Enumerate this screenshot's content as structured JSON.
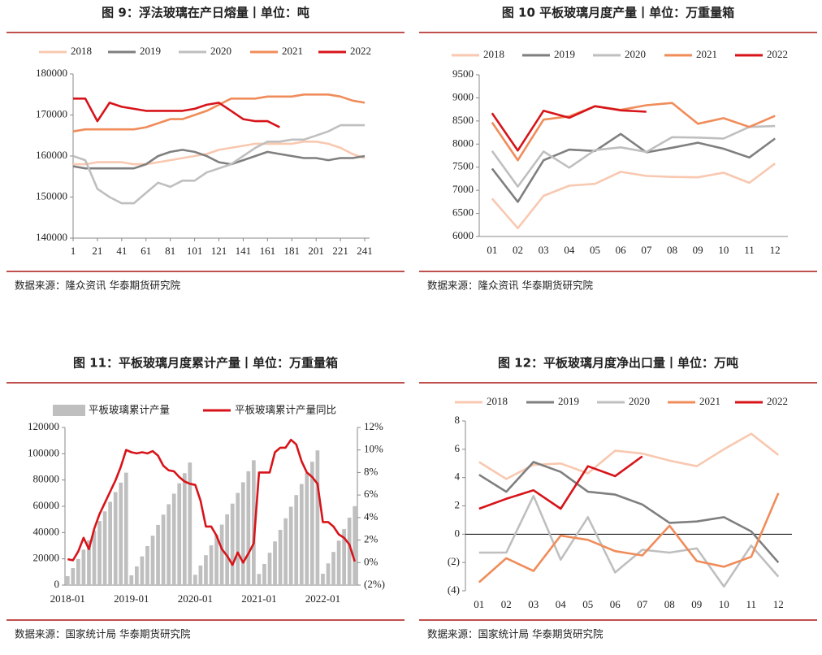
{
  "chart_data": [
    {
      "type": "line",
      "title": "图 9：浮法玻璃在产日熔量丨单位：吨",
      "source": "数据来源：隆众资讯  华泰期货研究院",
      "x": [
        1,
        11,
        21,
        31,
        41,
        51,
        61,
        71,
        81,
        91,
        101,
        111,
        121,
        131,
        141,
        151,
        161,
        171,
        181,
        191,
        201,
        211,
        221,
        231,
        241
      ],
      "xlim": [
        1,
        245
      ],
      "xticks": [
        1,
        21,
        41,
        61,
        81,
        101,
        121,
        141,
        161,
        181,
        201,
        221,
        241
      ],
      "ylim": [
        140000,
        180000
      ],
      "yticks": [
        140000,
        150000,
        160000,
        170000,
        180000
      ],
      "series": [
        {
          "name": "2018",
          "color": "#f8c8b0",
          "values": [
            158000,
            158000,
            158500,
            158500,
            158500,
            158000,
            158000,
            158500,
            159000,
            159500,
            160000,
            160500,
            161500,
            162000,
            162500,
            163000,
            163000,
            163000,
            163000,
            163500,
            163500,
            163000,
            162000,
            160500,
            159500
          ]
        },
        {
          "name": "2019",
          "color": "#7f7f7f",
          "values": [
            157500,
            157000,
            157000,
            157000,
            157000,
            157000,
            158000,
            160000,
            161000,
            161500,
            161000,
            160000,
            158500,
            158000,
            159000,
            160000,
            161000,
            160500,
            160000,
            159500,
            159500,
            159000,
            159500,
            159500,
            160000
          ]
        },
        {
          "name": "2020",
          "color": "#bfbfbf",
          "values": [
            160000,
            159000,
            152000,
            150000,
            148500,
            148500,
            151000,
            153500,
            152500,
            154000,
            154000,
            156000,
            157000,
            158000,
            160000,
            162000,
            163500,
            163500,
            164000,
            164000,
            165000,
            166000,
            167500,
            167500,
            167500
          ]
        },
        {
          "name": "2021",
          "color": "#f08c5a",
          "values": [
            166000,
            166500,
            166500,
            166500,
            166500,
            166500,
            167000,
            168000,
            169000,
            169000,
            170000,
            171000,
            172500,
            174000,
            174000,
            174000,
            174500,
            174500,
            174500,
            175000,
            175000,
            175000,
            174500,
            173500,
            173000
          ]
        },
        {
          "name": "2022",
          "color": "#d7141a",
          "values": [
            174000,
            174000,
            168500,
            173000,
            172000,
            171500,
            171000,
            171000,
            171000,
            171000,
            171500,
            172500,
            173000,
            171000,
            169000,
            168500,
            168500,
            167000,
            null,
            null,
            null,
            null,
            null,
            null,
            null
          ]
        }
      ]
    },
    {
      "type": "line",
      "title": "图 10 平板玻璃月度产量丨单位：万重量箱",
      "source": "数据来源：隆众资讯  华泰期货研究院",
      "categories": [
        "01",
        "02",
        "03",
        "04",
        "05",
        "06",
        "07",
        "08",
        "09",
        "10",
        "11",
        "12"
      ],
      "ylim": [
        6000,
        9500
      ],
      "yticks": [
        6000,
        6500,
        7000,
        7500,
        8000,
        8500,
        9000,
        9500
      ],
      "series": [
        {
          "name": "2018",
          "color": "#f8c8b0",
          "values": [
            6820,
            6180,
            6880,
            7100,
            7140,
            7400,
            7310,
            7290,
            7280,
            7380,
            7160,
            7580
          ]
        },
        {
          "name": "2019",
          "color": "#7f7f7f",
          "values": [
            7470,
            6750,
            7650,
            7880,
            7850,
            8220,
            7820,
            7920,
            8030,
            7900,
            7710,
            8120
          ]
        },
        {
          "name": "2020",
          "color": "#bfbfbf",
          "values": [
            7850,
            7080,
            7840,
            7490,
            7870,
            7930,
            7830,
            8150,
            8140,
            8120,
            8370,
            8390
          ]
        },
        {
          "name": "2021",
          "color": "#f08c5a",
          "values": [
            8470,
            7650,
            8530,
            8600,
            8820,
            8740,
            8840,
            8890,
            8440,
            8560,
            8370,
            8610
          ]
        },
        {
          "name": "2022",
          "color": "#d7141a",
          "values": [
            8670,
            7860,
            8720,
            8570,
            8820,
            8730,
            8700,
            null,
            null,
            null,
            null,
            null
          ]
        }
      ]
    },
    {
      "type": "combo",
      "title": "图 11：平板玻璃月度累计产量丨单位：万重量箱",
      "source": "数据来源：国家统计局  华泰期货研究院",
      "categories": [
        "2018-01",
        null,
        null,
        null,
        null,
        null,
        null,
        null,
        null,
        null,
        null,
        null,
        "2019-01",
        null,
        null,
        null,
        null,
        null,
        null,
        null,
        null,
        null,
        null,
        null,
        "2020-01",
        null,
        null,
        null,
        null,
        null,
        null,
        null,
        null,
        null,
        null,
        null,
        "2021-01",
        null,
        null,
        null,
        null,
        null,
        null,
        null,
        null,
        null,
        null,
        null,
        "2022-01",
        null,
        null,
        null,
        null,
        null,
        null
      ],
      "ylim": [
        0,
        120000
      ],
      "yticks": [
        0,
        20000,
        40000,
        60000,
        80000,
        100000,
        120000
      ],
      "y2lim": [
        -2,
        12
      ],
      "y2ticks": [
        {
          "value": -2,
          "label": "(2%)"
        },
        {
          "value": 0,
          "label": "0%"
        },
        {
          "value": 2,
          "label": "2%"
        },
        {
          "value": 4,
          "label": "4%"
        },
        {
          "value": 6,
          "label": "6%"
        },
        {
          "value": 8,
          "label": "8%"
        },
        {
          "value": 10,
          "label": "10%"
        },
        {
          "value": 12,
          "label": "12%"
        }
      ],
      "negative_tick_color": "#c00000",
      "series": [
        {
          "name": "平板玻璃累计产量",
          "type": "bar",
          "color": "#bfbfbf",
          "values": [
            6800,
            13000,
            19900,
            27000,
            34100,
            41500,
            48800,
            56100,
            63400,
            70800,
            78000,
            85600,
            7470,
            14220,
            21870,
            29750,
            37600,
            45820,
            53640,
            61560,
            69590,
            77490,
            85200,
            93320,
            7850,
            14930,
            22770,
            30260,
            38130,
            46060,
            53890,
            62040,
            70180,
            78300,
            86670,
            95060,
            8470,
            16120,
            24650,
            33250,
            42070,
            50810,
            59650,
            68540,
            76980,
            85540,
            93910,
            102520,
            8670,
            16530,
            25250,
            33820,
            42640,
            51370,
            60070
          ]
        },
        {
          "name": "平板玻璃累计产量同比",
          "type": "line",
          "axis": "y2",
          "color": "#d7141a",
          "values": [
            0.3,
            0.2,
            1.0,
            2.2,
            1.2,
            3.0,
            4.3,
            5.3,
            6.3,
            7.3,
            8.5,
            10.0,
            9.8,
            9.7,
            9.8,
            9.7,
            9.9,
            9.5,
            8.6,
            8.2,
            8.1,
            7.6,
            7.2,
            7.0,
            6.9,
            5.5,
            3.2,
            3.2,
            2.4,
            1.2,
            0.6,
            -0.2,
            0.9,
            0.0,
            0.8,
            1.7,
            8.0,
            8.0,
            8.0,
            9.8,
            10.2,
            10.2,
            10.9,
            10.5,
            9.0,
            8.0,
            7.6,
            7.0,
            3.6,
            3.6,
            3.2,
            2.5,
            2.2,
            1.6,
            0.1
          ]
        }
      ]
    },
    {
      "type": "line",
      "title": "图 12：平板玻璃月度净出口量丨单位：万吨",
      "source": "数据来源：国家统计局  华泰期货研究院",
      "categories": [
        "01",
        "02",
        "03",
        "04",
        "05",
        "06",
        "07",
        "08",
        "09",
        "10",
        "11",
        "12"
      ],
      "ylim": [
        -4,
        8
      ],
      "yticks": [
        {
          "value": -4,
          "label": "(4)"
        },
        {
          "value": -2,
          "label": "(2)"
        },
        0,
        2,
        4,
        6,
        8
      ],
      "negative_tick_color": "#c00000",
      "series": [
        {
          "name": "2018",
          "color": "#f8c8b0",
          "values": [
            5.1,
            3.9,
            4.9,
            5.0,
            4.3,
            5.9,
            5.7,
            5.2,
            4.8,
            6.0,
            7.1,
            5.6
          ]
        },
        {
          "name": "2019",
          "color": "#7f7f7f",
          "values": [
            4.2,
            3.0,
            5.1,
            4.4,
            3.0,
            2.8,
            2.1,
            0.8,
            0.9,
            1.2,
            0.2,
            -2.0
          ]
        },
        {
          "name": "2020",
          "color": "#bfbfbf",
          "values": [
            -1.3,
            -1.3,
            2.7,
            -1.8,
            1.2,
            -2.7,
            -1.1,
            -1.3,
            -1.0,
            -3.7,
            -0.8,
            -3.0
          ]
        },
        {
          "name": "2021",
          "color": "#f08c5a",
          "values": [
            -3.4,
            -1.7,
            -2.6,
            -0.1,
            -0.4,
            -1.2,
            -1.5,
            0.6,
            -1.9,
            -2.3,
            -1.6,
            2.9
          ]
        },
        {
          "name": "2022",
          "color": "#d7141a",
          "values": [
            1.8,
            2.5,
            3.1,
            1.8,
            4.8,
            4.1,
            5.5,
            null,
            null,
            null,
            null,
            null
          ]
        }
      ]
    }
  ]
}
